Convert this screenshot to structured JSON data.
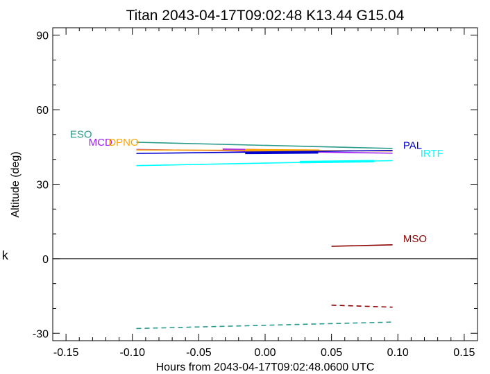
{
  "chart_data": {
    "type": "line",
    "title": "Titan 2043-04-17T09:02:48  K13.44  G15.04",
    "xlabel": "Hours from 2043-04-17T09:02:48.0600 UTC",
    "ylabel": "Altitude (deg)",
    "side_label": "k",
    "xlim": [
      -0.16,
      0.16
    ],
    "ylim": [
      -33,
      93
    ],
    "x_ticks": [
      -0.15,
      -0.1,
      -0.05,
      0.0,
      0.05,
      0.1,
      0.15
    ],
    "x_tick_labels": [
      "-0.15",
      "-0.10",
      "-0.05",
      "0.00",
      "0.05",
      "0.10",
      "0.15"
    ],
    "y_ticks": [
      -30,
      0,
      30,
      60,
      90
    ],
    "y_tick_labels": [
      "-30",
      "0",
      "30",
      "60",
      "90"
    ],
    "zero_line": 0,
    "grid": false,
    "series": [
      {
        "name": "ESO",
        "color": "#2a9a8a",
        "dash": false,
        "label_at": [
          -0.147,
          48.7
        ],
        "x": [
          -0.097,
          0.096
        ],
        "y": [
          46.9,
          44.4
        ]
      },
      {
        "name": "MCD",
        "color": "#a020f0",
        "dash": false,
        "label_at": [
          -0.133,
          45.5
        ],
        "x": [
          -0.097,
          0.096
        ],
        "y": [
          44.0,
          42.5
        ],
        "thick": {
          "x": [
            -0.032,
            0.024
          ],
          "y": [
            43.9,
            43.4
          ]
        }
      },
      {
        "name": "DPNO",
        "color": "#ffa500",
        "dash": false,
        "label_at": [
          -0.118,
          45.5
        ],
        "x": [
          -0.097,
          0.096
        ],
        "y": [
          43.8,
          43.4
        ],
        "thick": {
          "x": [
            -0.015,
            0.041
          ],
          "y": [
            43.7,
            43.5
          ]
        }
      },
      {
        "name": "PAL",
        "color": "#0000cd",
        "dash": false,
        "label_at": [
          0.104,
          44.2
        ],
        "x": [
          -0.097,
          0.096
        ],
        "y": [
          42.4,
          43.6
        ],
        "thick": {
          "x": [
            -0.015,
            0.04
          ],
          "y": [
            42.6,
            42.8
          ]
        }
      },
      {
        "name": "IRTF",
        "color": "#00ffff",
        "dash": false,
        "label_at": [
          0.117,
          41.0
        ],
        "x": [
          -0.097,
          0.096
        ],
        "y": [
          37.5,
          39.5
        ],
        "thick": {
          "x": [
            0.026,
            0.082
          ],
          "y": [
            38.9,
            39.3
          ]
        }
      },
      {
        "name": "MSO",
        "color": "#8b0000",
        "dash": false,
        "label_at": [
          0.104,
          6.7
        ],
        "x": [
          0.05,
          0.096
        ],
        "y": [
          5.0,
          5.6
        ]
      },
      {
        "name": "",
        "color": "#8b0000",
        "dash": true,
        "x": [
          0.05,
          0.096
        ],
        "y": [
          -18.7,
          -19.5
        ]
      },
      {
        "name": "",
        "color": "#2a9a8a",
        "dash": true,
        "x": [
          -0.097,
          0.096
        ],
        "y": [
          -28.1,
          -25.5
        ]
      }
    ]
  }
}
